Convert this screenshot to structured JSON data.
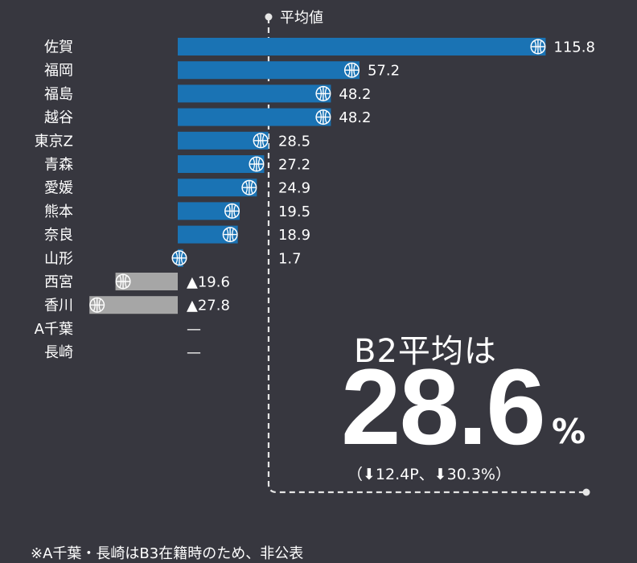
{
  "chart_data": {
    "type": "bar",
    "orientation": "horizontal",
    "categories": [
      "佐賀",
      "福岡",
      "福島",
      "越谷",
      "東京Z",
      "青森",
      "愛媛",
      "熊本",
      "奈良",
      "山形",
      "西宮",
      "香川",
      "A千葉",
      "長崎"
    ],
    "values": [
      115.8,
      57.2,
      48.2,
      48.2,
      28.5,
      27.2,
      24.9,
      19.5,
      18.9,
      1.7,
      -19.6,
      -27.8,
      null,
      null
    ],
    "value_labels": [
      "115.8",
      "57.2",
      "48.2",
      "48.2",
      "28.5",
      "27.2",
      "24.9",
      "19.5",
      "18.9",
      "1.7",
      "▲19.6",
      "▲27.8",
      "—",
      "—"
    ],
    "average": 28.6,
    "average_label": "平均値",
    "xlim": [
      -40,
      125
    ],
    "grid": false,
    "colors": {
      "positive": "#1a73b4",
      "negative": "#a6a6a6",
      "background": "#37373f",
      "text": "#ffffff"
    },
    "marker_icon": "basketball-icon"
  },
  "summary": {
    "title": "B2平均は",
    "value": "28.6",
    "unit": "%",
    "change": "（⬇12.4P、⬇30.3%）"
  },
  "footnote": "※A千葉・長崎はB3在籍時のため、非公表"
}
